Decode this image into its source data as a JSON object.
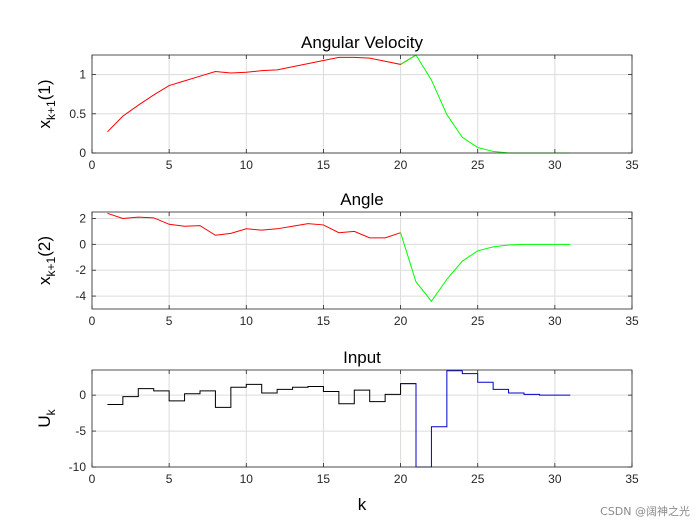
{
  "chart_data": [
    {
      "type": "line",
      "title": "Angular Velocity",
      "ylabel": "x_{k+1}(1)",
      "ylabel_main": "x",
      "ylabel_sub": "k+1",
      "ylabel_tail": "(1)",
      "xlim": [
        0,
        35
      ],
      "ylim": [
        0,
        1.25
      ],
      "xticks": [
        0,
        5,
        10,
        15,
        20,
        25,
        30,
        35
      ],
      "yticks": [
        0,
        0.5,
        1
      ],
      "ytick_labels": [
        "0",
        "0.5",
        "1"
      ],
      "grid": true,
      "series": [
        {
          "color": "#ff0000",
          "x": [
            1,
            2,
            3,
            4,
            5,
            6,
            7,
            8,
            9,
            10,
            11,
            12,
            13,
            14,
            15,
            16,
            17,
            18,
            19,
            20,
            21
          ],
          "values": [
            0.27,
            0.47,
            0.61,
            0.74,
            0.86,
            0.92,
            0.98,
            1.04,
            1.02,
            1.03,
            1.05,
            1.06,
            1.1,
            1.14,
            1.18,
            1.22,
            1.22,
            1.21,
            1.17,
            1.13,
            1.25
          ]
        },
        {
          "color": "#00ff00",
          "x": [
            20,
            21,
            22,
            23,
            24,
            25,
            26,
            27,
            28,
            29,
            30,
            31
          ],
          "values": [
            1.13,
            1.25,
            0.93,
            0.49,
            0.2,
            0.07,
            0.02,
            0.0,
            0.0,
            0.0,
            0.0,
            0.0
          ]
        }
      ]
    },
    {
      "type": "line",
      "title": "Angle",
      "ylabel": "x_{k+1}(2)",
      "ylabel_main": "x",
      "ylabel_sub": "k+1",
      "ylabel_tail": "(2)",
      "xlim": [
        0,
        35
      ],
      "ylim": [
        -5,
        2.5
      ],
      "xticks": [
        0,
        5,
        10,
        15,
        20,
        25,
        30,
        35
      ],
      "yticks": [
        -4,
        -2,
        0,
        2
      ],
      "ytick_labels": [
        "-4",
        "-2",
        "0",
        "2"
      ],
      "grid": true,
      "series": [
        {
          "color": "#ff0000",
          "x": [
            1,
            2,
            3,
            4,
            5,
            6,
            7,
            8,
            9,
            10,
            11,
            12,
            13,
            14,
            15,
            16,
            17,
            18,
            19,
            20
          ],
          "values": [
            2.4,
            2.0,
            2.1,
            2.05,
            1.55,
            1.4,
            1.45,
            0.7,
            0.85,
            1.2,
            1.1,
            1.2,
            1.4,
            1.6,
            1.5,
            0.9,
            1.0,
            0.5,
            0.5,
            0.9
          ]
        },
        {
          "color": "#00ff00",
          "x": [
            20,
            21,
            22,
            23,
            24,
            25,
            26,
            27,
            28,
            29,
            30,
            31
          ],
          "values": [
            0.9,
            -2.9,
            -4.4,
            -2.7,
            -1.3,
            -0.5,
            -0.2,
            -0.05,
            0.0,
            0.0,
            0.0,
            0.0
          ]
        }
      ]
    },
    {
      "type": "line",
      "title": "Input",
      "ylabel": "U_k",
      "ylabel_main": "U",
      "ylabel_sub": "k",
      "ylabel_tail": "",
      "xlabel": "k",
      "xlim": [
        0,
        35
      ],
      "ylim": [
        -10,
        3.5
      ],
      "xticks": [
        0,
        5,
        10,
        15,
        20,
        25,
        30,
        35
      ],
      "yticks": [
        -10,
        -5,
        0
      ],
      "ytick_labels": [
        "-10",
        "-5",
        "0"
      ],
      "grid": true,
      "step": true,
      "series": [
        {
          "color": "#000000",
          "x": [
            1,
            2,
            3,
            4,
            5,
            6,
            7,
            8,
            9,
            10,
            11,
            12,
            13,
            14,
            15,
            16,
            17,
            18,
            19,
            20,
            21
          ],
          "values": [
            -1.3,
            -0.2,
            0.9,
            0.6,
            -0.8,
            0.2,
            0.6,
            -1.7,
            1.1,
            1.5,
            0.3,
            0.8,
            1.1,
            1.2,
            0.5,
            -1.2,
            0.7,
            -0.9,
            0.1,
            1.6,
            1.6
          ]
        },
        {
          "color": "#0000cc",
          "x": [
            20,
            21,
            22,
            23,
            24,
            25,
            26,
            27,
            28,
            29,
            30,
            31
          ],
          "values": [
            1.6,
            -10,
            -4.4,
            3.4,
            3.0,
            1.8,
            0.8,
            0.3,
            0.1,
            0.0,
            0.0,
            0.0
          ]
        }
      ]
    }
  ],
  "watermark": "CSDN @阔神之光"
}
